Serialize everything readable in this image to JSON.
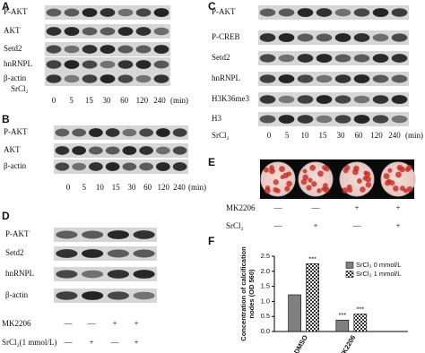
{
  "panels": {
    "A": {
      "label": "A",
      "rows": [
        "P-AKT",
        "AKT",
        "Setd2",
        "hnRNPL",
        "β-actin"
      ],
      "treatment": "SrCl₂",
      "times": [
        "0",
        "5",
        "15",
        "30",
        "60",
        "120",
        "240"
      ],
      "unit": "(min)"
    },
    "B": {
      "label": "B",
      "rows": [
        "P-AKT",
        "AKT",
        "β-actin"
      ],
      "times": [
        "0",
        "5",
        "10",
        "15",
        "30",
        "60",
        "120",
        "240"
      ],
      "unit": "(min)"
    },
    "C": {
      "label": "C",
      "rows": [
        "P-AKT",
        "P-CREB",
        "Setd2",
        "hnRNPL",
        "H3K36me3",
        "H3"
      ],
      "treatment": "SrCl₂",
      "times": [
        "0",
        "5",
        "10",
        "15",
        "30",
        "60",
        "120",
        "240"
      ],
      "unit": "(min)"
    },
    "D": {
      "label": "D",
      "rows": [
        "P-AKT",
        "Setd2",
        "hnRNPL",
        "β-actin"
      ],
      "conditions": [
        {
          "name": "MK2206",
          "signs": [
            "—",
            "—",
            "+",
            "+"
          ]
        },
        {
          "name": "SrCl₂(1 mmol/L)",
          "signs": [
            "—",
            "+",
            "—",
            "+"
          ]
        }
      ]
    },
    "E": {
      "label": "E",
      "conditions": [
        {
          "name": "MK2206",
          "signs": [
            "—",
            "—",
            "+",
            "+"
          ]
        },
        {
          "name": "SrCl₂",
          "signs": [
            "—",
            "+",
            "—",
            "+"
          ]
        }
      ]
    }
  },
  "chart_data": {
    "type": "bar",
    "panel_label": "F",
    "ylabel": [
      "Concentration of calcification",
      "nodes (OD 560)"
    ],
    "categories": [
      "DMSO",
      "MK2206"
    ],
    "series": [
      {
        "name": "SrCl₂ 0 mmol/L",
        "color": "#808080",
        "values": [
          1.22,
          0.38
        ]
      },
      {
        "name": "SrCl₂ 1 mmol/L",
        "color": "#333333",
        "pattern": "checker",
        "values": [
          2.25,
          0.58
        ]
      }
    ],
    "annotations": [
      {
        "text": "***",
        "series": 1,
        "category": 0
      },
      {
        "text": "***",
        "series": 0,
        "category": 1
      },
      {
        "text": "***",
        "series": 1,
        "category": 1
      }
    ],
    "ylim": [
      0,
      2.5
    ],
    "yticks": [
      {
        "value": 0,
        "label": "0.0"
      },
      0.5,
      {
        "value": 1,
        "label": "1.0"
      },
      1.5,
      {
        "value": 2,
        "label": "2.0"
      },
      2.5
    ],
    "legend": "upper right"
  }
}
